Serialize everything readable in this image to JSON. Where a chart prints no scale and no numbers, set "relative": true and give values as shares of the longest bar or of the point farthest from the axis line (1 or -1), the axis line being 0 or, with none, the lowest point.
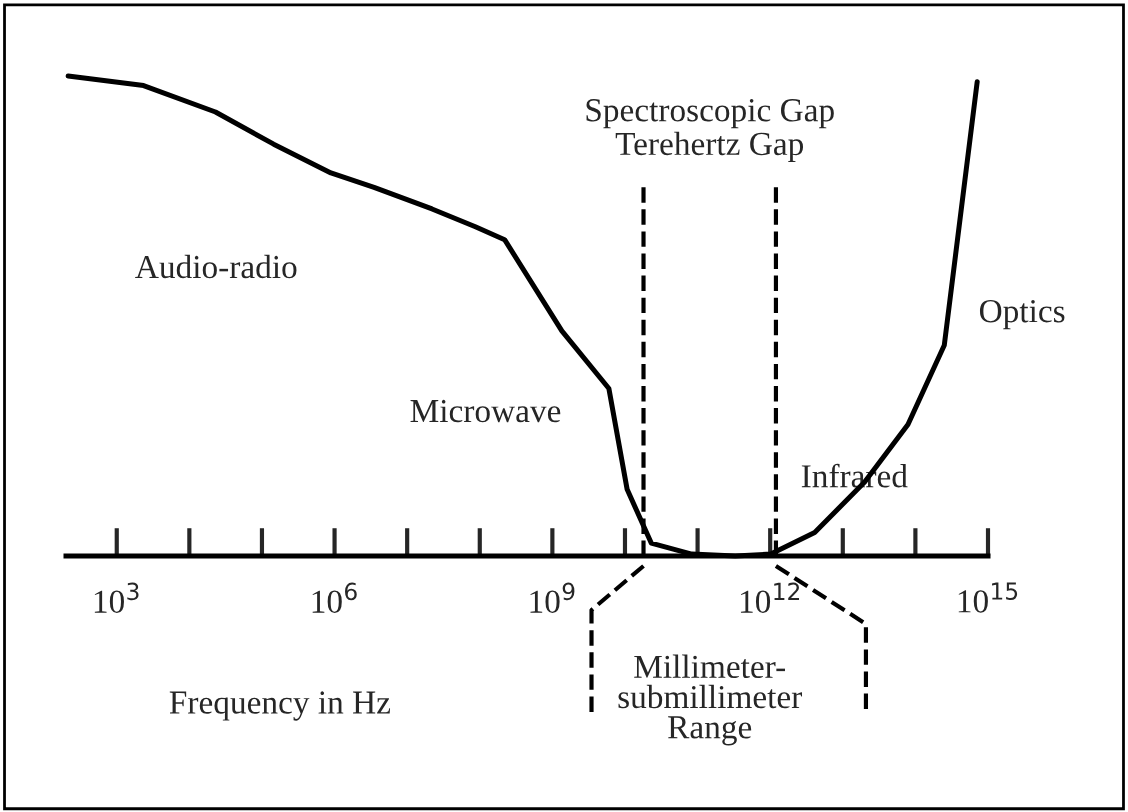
{
  "chart_data": {
    "type": "line",
    "relative": true,
    "log": "x",
    "xlabel": "Frequency in Hz",
    "xlim": [
      200,
      1000000000000000.0
    ],
    "xticks": [
      {
        "value": 1000.0,
        "label": "10$^{3}$"
      },
      {
        "value": 10000.0,
        "label": null
      },
      {
        "value": 100000.0,
        "label": null
      },
      {
        "value": 1000000.0,
        "label": "10$^{6}$"
      },
      {
        "value": 10000000.0,
        "label": null
      },
      {
        "value": 100000000.0,
        "label": null
      },
      {
        "value": 1000000000.0,
        "label": "10$^{9}$"
      },
      {
        "value": 10000000000.0,
        "label": null
      },
      {
        "value": 100000000000.0,
        "label": null
      },
      {
        "value": 1000000000000.0,
        "label": "10$^{12}$"
      },
      {
        "value": 10000000000000.0,
        "label": null
      },
      {
        "value": 100000000000000.0,
        "label": null
      },
      {
        "value": 1000000000000000.0,
        "label": "10$^{15}$"
      }
    ],
    "tick_labels": "x",
    "grid": false,
    "legend": false,
    "series": [
      {
        "color": "#000000",
        "x": [
          214,
          2340,
          22900,
          145000,
          891000,
          3500000.0,
          22000000.0,
          87000000.0,
          220000000.0,
          1350000000.0,
          6000000000.0,
          10700000000.0,
          23000000000.0,
          83000000000.0,
          330000000000.0,
          1020000000000.0,
          4100000000000.0,
          20000000000000.0,
          79000000000000.0,
          250000000000000.0,
          710000000000000.0
        ],
        "values": [
          1.0,
          0.98,
          0.925,
          0.858,
          0.798,
          0.768,
          0.723,
          0.686,
          0.659,
          0.469,
          0.349,
          0.139,
          0.027,
          0.004,
          0.0,
          0.004,
          0.049,
          0.154,
          0.274,
          0.439,
          0.988
        ]
      }
    ],
    "ref_lines": [
      {
        "axis": "x",
        "value": 18000000000.0,
        "line_style": "dashed",
        "color": "#000000"
      },
      {
        "axis": "x",
        "value": 1200000000000.0,
        "line_style": "dashed",
        "color": "#000000"
      }
    ],
    "annotations": [
      "Spectroscopic Gap\nTerehertz Gap",
      "Millimeter-\nsubmillimeter\nRange",
      "Audio-radio",
      "Microwave",
      "Infrared",
      "Optics"
    ]
  }
}
